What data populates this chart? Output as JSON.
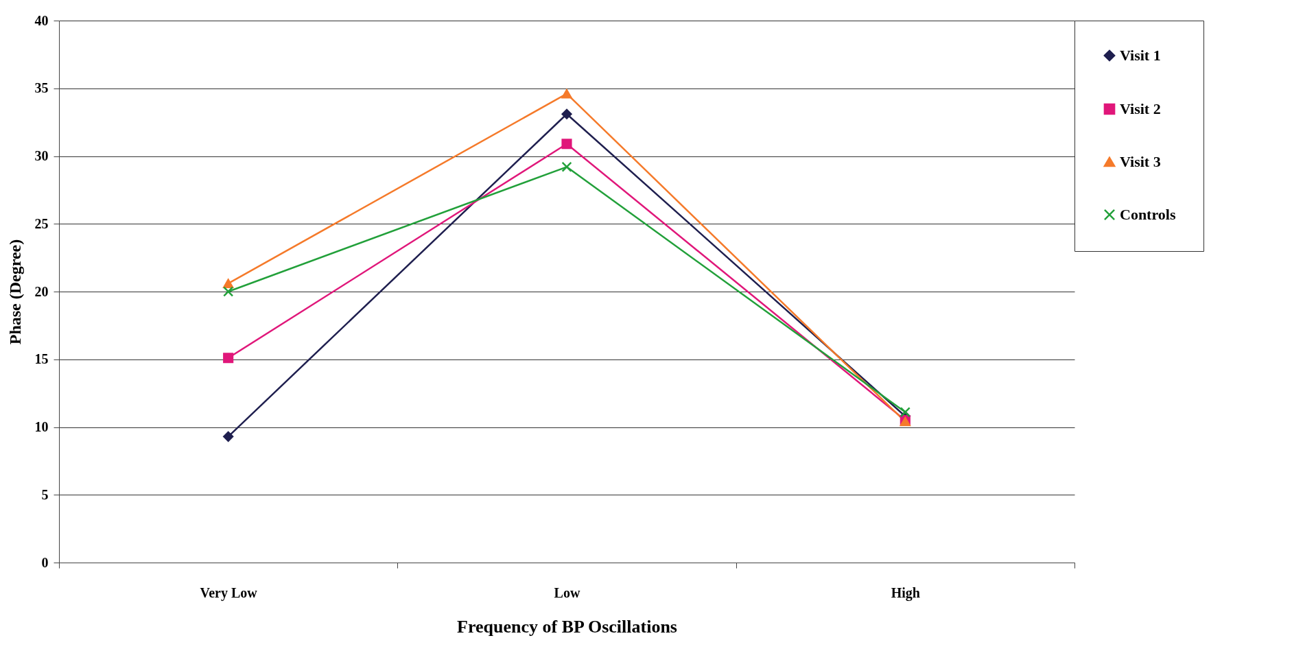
{
  "chart_data": {
    "type": "line",
    "xlabel": "Frequency of BP Oscillations",
    "ylabel": "Phase (Degree)",
    "categories": [
      "Very Low",
      "Low",
      "High"
    ],
    "series": [
      {
        "name": "Visit 1",
        "color": "#1f1f4f",
        "marker": "diamond",
        "values": [
          9.3,
          33.1,
          10.8
        ]
      },
      {
        "name": "Visit 2",
        "color": "#e0177a",
        "marker": "square",
        "values": [
          15.1,
          30.9,
          10.5
        ]
      },
      {
        "name": "Visit 3",
        "color": "#f57a2a",
        "marker": "triangle",
        "values": [
          20.6,
          34.6,
          10.4
        ]
      },
      {
        "name": "Controls",
        "color": "#22a03a",
        "marker": "cross",
        "values": [
          20.0,
          29.2,
          11.1
        ]
      }
    ],
    "ylim": [
      0,
      40
    ],
    "yticks": [
      0,
      5,
      10,
      15,
      20,
      25,
      30,
      35,
      40
    ],
    "grid": "y",
    "legend": "right"
  }
}
